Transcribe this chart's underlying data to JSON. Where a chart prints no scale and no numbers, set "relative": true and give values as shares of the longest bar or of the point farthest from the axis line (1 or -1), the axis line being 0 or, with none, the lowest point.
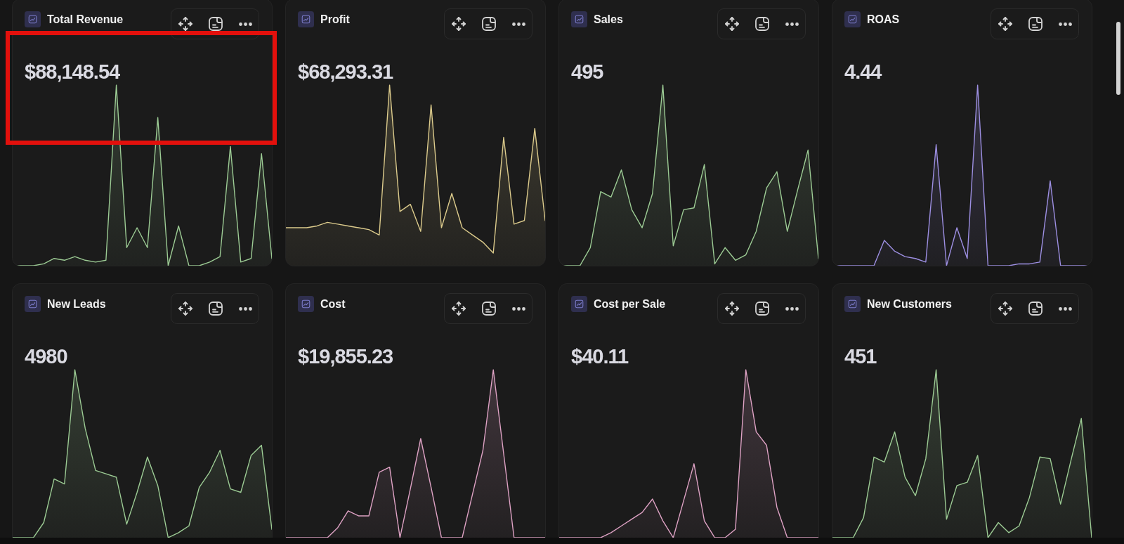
{
  "chart_data": [
    {
      "type": "area",
      "title": "Total Revenue",
      "subtitle": "$88,148.54",
      "categories": [
        null,
        null,
        null,
        null,
        null,
        null,
        null,
        null,
        null,
        null,
        null,
        null,
        null,
        null,
        null,
        null,
        null,
        null,
        null,
        null,
        null,
        null,
        null,
        null,
        null,
        null
      ],
      "values": [
        0,
        0,
        0,
        0.01,
        0.04,
        0.03,
        0.05,
        0.03,
        0.02,
        0.03,
        1,
        0.1,
        0.21,
        0.1,
        0.82,
        0,
        0.22,
        0,
        0,
        0.02,
        0.05,
        0.66,
        0.02,
        0.04,
        0.62,
        0.04
      ],
      "color": "#9ccb94",
      "relative": true,
      "marker": "none",
      "tick_labels": false
    },
    {
      "type": "area",
      "title": "Profit",
      "subtitle": "$68,293.31",
      "categories": [
        null,
        null,
        null,
        null,
        null,
        null,
        null,
        null,
        null,
        null,
        null,
        null,
        null,
        null,
        null,
        null,
        null,
        null,
        null,
        null,
        null,
        null,
        null,
        null,
        null,
        null
      ],
      "values": [
        0.21,
        0.21,
        0.21,
        0.22,
        0.24,
        0.23,
        0.22,
        0.21,
        0.2,
        0.17,
        1,
        0.3,
        0.34,
        0.19,
        0.89,
        0.21,
        0.4,
        0.21,
        0.17,
        0.13,
        0.07,
        0.71,
        0.23,
        0.25,
        0.76,
        0.25
      ],
      "color": "#dccb8c",
      "relative": true,
      "marker": "none",
      "tick_labels": false
    },
    {
      "type": "area",
      "title": "Sales",
      "subtitle": "495",
      "categories": [
        null,
        null,
        null,
        null,
        null,
        null,
        null,
        null,
        null,
        null,
        null,
        null,
        null,
        null,
        null,
        null,
        null,
        null,
        null,
        null,
        null,
        null,
        null,
        null,
        null,
        null
      ],
      "values": [
        0,
        0,
        0,
        0.1,
        0.41,
        0.38,
        0.53,
        0.31,
        0.21,
        0.4,
        1,
        0.11,
        0.31,
        0.32,
        0.56,
        0.01,
        0.1,
        0.03,
        0.06,
        0.19,
        0.43,
        0.52,
        0.19,
        0.42,
        0.64,
        0.04
      ],
      "color": "#9ccb94",
      "relative": true,
      "marker": "none",
      "tick_labels": false
    },
    {
      "type": "area",
      "title": "ROAS",
      "subtitle": "4.44",
      "categories": [
        null,
        null,
        null,
        null,
        null,
        null,
        null,
        null,
        null,
        null,
        null,
        null,
        null,
        null,
        null,
        null,
        null,
        null,
        null,
        null,
        null,
        null,
        null,
        null,
        null,
        null
      ],
      "values": [
        0,
        0,
        0,
        0,
        0,
        0.14,
        0.08,
        0.05,
        0.04,
        0.02,
        0.67,
        0,
        0.21,
        0.04,
        1,
        0,
        0,
        0,
        0.01,
        0.01,
        0.02,
        0.47,
        0,
        0,
        0,
        0
      ],
      "color": "#9d8fe2",
      "relative": true,
      "marker": "none",
      "tick_labels": false
    },
    {
      "type": "area",
      "title": "New Leads",
      "subtitle": "4980",
      "categories": [
        null,
        null,
        null,
        null,
        null,
        null,
        null,
        null,
        null,
        null,
        null,
        null,
        null,
        null,
        null,
        null,
        null,
        null,
        null,
        null,
        null,
        null,
        null,
        null,
        null,
        null
      ],
      "values": [
        0,
        0,
        0,
        0.09,
        0.35,
        0.32,
        1,
        0.65,
        0.4,
        0.38,
        0.36,
        0.08,
        0.27,
        0.48,
        0.31,
        0,
        0.03,
        0.07,
        0.3,
        0.39,
        0.52,
        0.29,
        0.27,
        0.49,
        0.55,
        0.05
      ],
      "color": "#9ccb94",
      "relative": true,
      "marker": "none",
      "tick_labels": false
    },
    {
      "type": "area",
      "title": "Cost",
      "subtitle": "$19,855.23",
      "categories": [
        null,
        null,
        null,
        null,
        null,
        null,
        null,
        null,
        null,
        null,
        null,
        null,
        null,
        null,
        null,
        null,
        null,
        null,
        null,
        null,
        null,
        null,
        null,
        null,
        null,
        null
      ],
      "values": [
        0,
        0,
        0,
        0,
        0,
        0.06,
        0.16,
        0.13,
        0.13,
        0.39,
        0.42,
        0,
        0.29,
        0.59,
        0.3,
        0,
        0,
        0,
        0.26,
        0.52,
        1,
        0.5,
        0,
        0,
        0,
        0
      ],
      "color": "#dea2c4",
      "relative": true,
      "marker": "none",
      "tick_labels": false
    },
    {
      "type": "area",
      "title": "Cost per Sale",
      "subtitle": "$40.11",
      "categories": [
        null,
        null,
        null,
        null,
        null,
        null,
        null,
        null,
        null,
        null,
        null,
        null,
        null,
        null,
        null,
        null,
        null,
        null,
        null,
        null,
        null,
        null,
        null,
        null,
        null,
        null
      ],
      "values": [
        0,
        0,
        0,
        0,
        0,
        0.03,
        0.07,
        0.11,
        0.15,
        0.23,
        0.1,
        0,
        0.22,
        0.44,
        0.1,
        0,
        0,
        0.05,
        1,
        0.63,
        0.55,
        0.18,
        0,
        0,
        0,
        0
      ],
      "color": "#dea2c4",
      "relative": true,
      "marker": "none",
      "tick_labels": false
    },
    {
      "type": "area",
      "title": "New Customers",
      "subtitle": "451",
      "categories": [
        null,
        null,
        null,
        null,
        null,
        null,
        null,
        null,
        null,
        null,
        null,
        null,
        null,
        null,
        null,
        null,
        null,
        null,
        null,
        null,
        null,
        null,
        null,
        null,
        null,
        null
      ],
      "values": [
        0,
        0,
        0,
        0.12,
        0.48,
        0.45,
        0.63,
        0.36,
        0.25,
        0.47,
        1,
        0.11,
        0.31,
        0.33,
        0.49,
        0,
        0.09,
        0.03,
        0.07,
        0.24,
        0.48,
        0.47,
        0.2,
        0.46,
        0.71,
        0
      ],
      "color": "#9ccb94",
      "relative": true,
      "marker": "none",
      "tick_labels": false
    }
  ]
}
